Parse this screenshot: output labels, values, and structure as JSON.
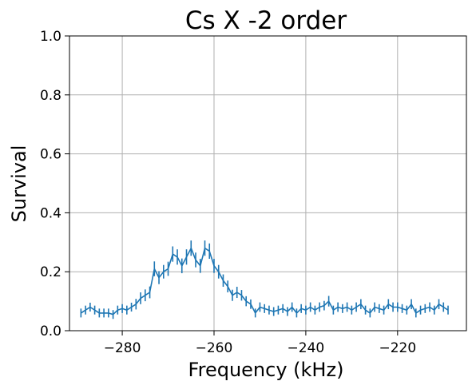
{
  "chart_data": {
    "type": "line",
    "title": "Cs X -2 order",
    "xlabel": "Frequency (kHz)",
    "ylabel": "Survival",
    "xlim": [
      -291.5,
      -205.0
    ],
    "ylim": [
      0.0,
      1.0
    ],
    "xticks": [
      -280,
      -260,
      -240,
      -220
    ],
    "xtick_labels": [
      "−280",
      "−260",
      "−240",
      "−220"
    ],
    "yticks": [
      0.0,
      0.2,
      0.4,
      0.6,
      0.8,
      1.0
    ],
    "ytick_labels": [
      "0.0",
      "0.2",
      "0.4",
      "0.6",
      "0.8",
      "1.0"
    ],
    "grid": true,
    "error_bars": true,
    "series": [
      {
        "color": "#1f77b4",
        "x": [
          -289,
          -288,
          -287,
          -286,
          -285,
          -284,
          -283,
          -282,
          -281,
          -280,
          -279,
          -278,
          -277,
          -276,
          -275,
          -274,
          -273,
          -272,
          -271,
          -270,
          -269,
          -268,
          -267,
          -266,
          -265,
          -264,
          -263,
          -262,
          -261,
          -260,
          -259,
          -258,
          -257,
          -256,
          -255,
          -254,
          -253,
          -252,
          -251,
          -250,
          -249,
          -248,
          -247,
          -246,
          -245,
          -244,
          -243,
          -242,
          -241,
          -240,
          -239,
          -238,
          -237,
          -236,
          -235,
          -234,
          -233,
          -232,
          -231,
          -230,
          -229,
          -228,
          -227,
          -226,
          -225,
          -224,
          -223,
          -222,
          -221,
          -220,
          -219,
          -218,
          -217,
          -216,
          -215,
          -214,
          -213,
          -212,
          -211,
          -210,
          -209
        ],
        "y": [
          0.06,
          0.07,
          0.08,
          0.07,
          0.06,
          0.06,
          0.06,
          0.055,
          0.07,
          0.075,
          0.07,
          0.08,
          0.09,
          0.11,
          0.12,
          0.13,
          0.21,
          0.18,
          0.2,
          0.21,
          0.26,
          0.25,
          0.22,
          0.25,
          0.28,
          0.24,
          0.22,
          0.28,
          0.27,
          0.22,
          0.2,
          0.17,
          0.15,
          0.12,
          0.13,
          0.12,
          0.1,
          0.09,
          0.06,
          0.08,
          0.075,
          0.07,
          0.065,
          0.07,
          0.075,
          0.065,
          0.08,
          0.06,
          0.075,
          0.07,
          0.08,
          0.07,
          0.08,
          0.085,
          0.1,
          0.07,
          0.08,
          0.075,
          0.08,
          0.07,
          0.08,
          0.09,
          0.07,
          0.06,
          0.08,
          0.075,
          0.07,
          0.09,
          0.08,
          0.08,
          0.075,
          0.07,
          0.09,
          0.06,
          0.07,
          0.075,
          0.08,
          0.07,
          0.09,
          0.08,
          0.07
        ],
        "yerr": [
          0.015,
          0.015,
          0.015,
          0.015,
          0.015,
          0.015,
          0.015,
          0.015,
          0.015,
          0.015,
          0.015,
          0.015,
          0.018,
          0.02,
          0.02,
          0.02,
          0.025,
          0.022,
          0.023,
          0.024,
          0.026,
          0.026,
          0.025,
          0.026,
          0.026,
          0.025,
          0.024,
          0.026,
          0.026,
          0.024,
          0.023,
          0.021,
          0.02,
          0.019,
          0.019,
          0.018,
          0.017,
          0.016,
          0.015,
          0.016,
          0.015,
          0.015,
          0.015,
          0.015,
          0.015,
          0.015,
          0.016,
          0.015,
          0.015,
          0.015,
          0.016,
          0.015,
          0.016,
          0.016,
          0.018,
          0.015,
          0.016,
          0.015,
          0.016,
          0.015,
          0.016,
          0.017,
          0.015,
          0.015,
          0.016,
          0.015,
          0.015,
          0.017,
          0.016,
          0.016,
          0.015,
          0.015,
          0.017,
          0.015,
          0.015,
          0.015,
          0.016,
          0.015,
          0.017,
          0.016,
          0.015
        ]
      }
    ]
  }
}
